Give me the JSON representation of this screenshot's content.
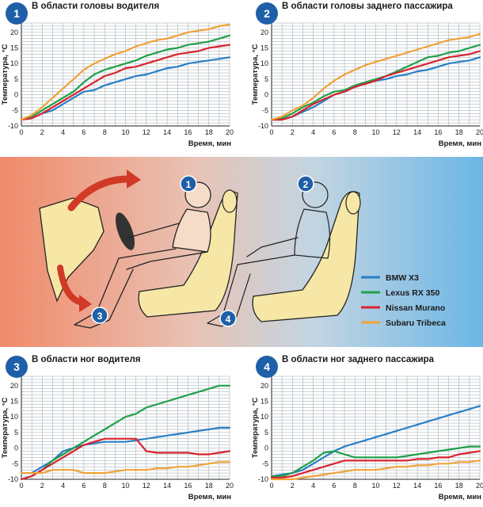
{
  "colors": {
    "bmw": "#2a7fc6",
    "lexus": "#1fa04a",
    "nissan": "#d8242e",
    "subaru": "#f0a236",
    "badge": "#1f5fa8",
    "grid": "#9aa5ad"
  },
  "legend": {
    "items": [
      {
        "label": "BMW X3",
        "color": "#2a7fc6"
      },
      {
        "label": "Lexus RX 350",
        "color": "#1fa04a"
      },
      {
        "label": "Nissan Murano",
        "color": "#d8242e"
      },
      {
        "label": "Subaru Tribeca",
        "color": "#f0a236"
      }
    ]
  },
  "illustration": {
    "markers": [
      "1",
      "2",
      "3",
      "4"
    ]
  },
  "chart_data": [
    {
      "type": "line",
      "number": "1",
      "title": "В области головы водителя",
      "xlabel": "Время, мин",
      "ylabel": "Температура, °С",
      "x": [
        0,
        1,
        2,
        3,
        4,
        5,
        6,
        7,
        8,
        9,
        10,
        11,
        12,
        13,
        14,
        15,
        16,
        17,
        18,
        19,
        20
      ],
      "xticks": [
        0,
        2,
        4,
        6,
        8,
        10,
        12,
        14,
        16,
        18,
        20
      ],
      "yticks": [
        -10,
        -5,
        0,
        5,
        10,
        15,
        20
      ],
      "ylim": [
        -10,
        23
      ],
      "grid": true,
      "series": [
        {
          "name": "BMW X3",
          "values": [
            -8,
            -7.5,
            -6,
            -5,
            -3,
            -1,
            1,
            1.5,
            3,
            4,
            5,
            6,
            6.5,
            7.5,
            8.5,
            9,
            10,
            10.5,
            11,
            11.5,
            12
          ]
        },
        {
          "name": "Lexus RX 350",
          "values": [
            -8,
            -7,
            -5,
            -3,
            -1,
            1,
            4,
            6.5,
            8,
            9,
            10,
            11,
            12.5,
            13.5,
            14.5,
            15,
            16,
            16.5,
            17,
            18,
            19
          ]
        },
        {
          "name": "Nissan Murano",
          "values": [
            -8,
            -7.5,
            -6,
            -4,
            -2,
            0,
            2,
            4,
            6,
            7,
            8.5,
            9,
            10,
            11,
            12,
            13,
            13.5,
            14,
            15,
            15.5,
            16
          ]
        },
        {
          "name": "Subaru Tribeca",
          "values": [
            -8,
            -6.5,
            -4,
            -1,
            2,
            5,
            8,
            10,
            11.5,
            13,
            14,
            15.5,
            16.5,
            17.5,
            18,
            19,
            20,
            20.5,
            21,
            22,
            22.5
          ]
        }
      ]
    },
    {
      "type": "line",
      "number": "2",
      "title": "В области головы заднего пассажира",
      "xlabel": "Время, мин",
      "ylabel": "Температура, °С",
      "x": [
        0,
        1,
        2,
        3,
        4,
        5,
        6,
        7,
        8,
        9,
        10,
        11,
        12,
        13,
        14,
        15,
        16,
        17,
        18,
        19,
        20
      ],
      "xticks": [
        0,
        2,
        4,
        6,
        8,
        10,
        12,
        14,
        16,
        18,
        20
      ],
      "yticks": [
        -10,
        -5,
        0,
        5,
        10,
        15,
        20
      ],
      "ylim": [
        -10,
        23
      ],
      "grid": true,
      "series": [
        {
          "name": "BMW X3",
          "values": [
            -8,
            -8,
            -7,
            -5.5,
            -4,
            -2,
            0,
            1,
            2.5,
            3.5,
            4.5,
            5,
            6,
            6.5,
            7.5,
            8,
            9,
            10,
            10.5,
            11,
            12
          ]
        },
        {
          "name": "Lexus RX 350",
          "values": [
            -8,
            -7.5,
            -6,
            -4,
            -2.5,
            -0.5,
            1,
            1.5,
            3,
            4,
            5,
            6,
            7.5,
            9,
            10.5,
            12,
            12.5,
            13.5,
            14,
            15,
            16
          ]
        },
        {
          "name": "Nissan Murano",
          "values": [
            -8,
            -8,
            -7,
            -5,
            -3,
            -1.5,
            0,
            1,
            2.5,
            3.5,
            4.5,
            6,
            7,
            8,
            9,
            10,
            11,
            12,
            12.5,
            13,
            14
          ]
        },
        {
          "name": "Subaru Tribeca",
          "values": [
            -8,
            -7,
            -5,
            -3.5,
            -1,
            2,
            4.5,
            6.5,
            8,
            9.5,
            10.5,
            11.5,
            12.5,
            13.5,
            14.5,
            15.5,
            16.5,
            17.5,
            18,
            18.5,
            19.5
          ]
        }
      ]
    },
    {
      "type": "line",
      "number": "3",
      "title": "В области ног водителя",
      "xlabel": "Время, мин",
      "ylabel": "Температура, °С",
      "x": [
        0,
        1,
        2,
        3,
        4,
        5,
        6,
        7,
        8,
        9,
        10,
        11,
        12,
        13,
        14,
        15,
        16,
        17,
        18,
        19,
        20
      ],
      "xticks": [
        0,
        2,
        4,
        6,
        8,
        10,
        12,
        14,
        16,
        18,
        20
      ],
      "yticks": [
        -10,
        -5,
        0,
        5,
        10,
        15,
        20
      ],
      "ylim": [
        -10,
        23
      ],
      "grid": true,
      "series": [
        {
          "name": "BMW X3",
          "values": [
            -8,
            -8,
            -6,
            -4,
            -1,
            0,
            1,
            1.5,
            2,
            2,
            2,
            2.5,
            3,
            3.5,
            4,
            4.5,
            5,
            5.5,
            6,
            6.5,
            6.5
          ]
        },
        {
          "name": "Lexus RX 350",
          "values": [
            -10,
            -9,
            -7,
            -4,
            -2,
            0,
            2,
            4,
            6,
            8,
            10,
            11,
            13,
            14,
            15,
            16,
            17,
            18,
            19,
            20,
            20
          ]
        },
        {
          "name": "Nissan Murano",
          "values": [
            -10,
            -9,
            -7,
            -5,
            -3,
            -1,
            1,
            2,
            3,
            3,
            3,
            3,
            -1,
            -1.5,
            -1.5,
            -1.5,
            -1.5,
            -2,
            -2,
            -1.5,
            -1
          ]
        },
        {
          "name": "Subaru Tribeca",
          "values": [
            -8,
            -8,
            -8,
            -7,
            -7,
            -7,
            -8,
            -8,
            -8,
            -7.5,
            -7,
            -7,
            -7,
            -6.5,
            -6.5,
            -6,
            -6,
            -5.5,
            -5,
            -4.5,
            -4.5
          ]
        }
      ]
    },
    {
      "type": "line",
      "number": "4",
      "title": "В области ног заднего пассажира",
      "xlabel": "Время, мин",
      "ylabel": "Температура, °С",
      "x": [
        0,
        1,
        2,
        3,
        4,
        5,
        6,
        7,
        8,
        9,
        10,
        11,
        12,
        13,
        14,
        15,
        16,
        17,
        18,
        19,
        20
      ],
      "xticks": [
        0,
        2,
        4,
        6,
        8,
        10,
        12,
        14,
        16,
        18,
        20
      ],
      "yticks": [
        -10,
        -5,
        0,
        5,
        10,
        15,
        20
      ],
      "ylim": [
        -10,
        23
      ],
      "grid": true,
      "series": [
        {
          "name": "BMW X3",
          "values": [
            -9,
            -8.5,
            -8,
            -7,
            -5,
            -3,
            -1,
            0.5,
            1.5,
            2.5,
            3.5,
            4.5,
            5.5,
            6.5,
            7.5,
            8.5,
            9.5,
            10.5,
            11.5,
            12.5,
            13.5
          ]
        },
        {
          "name": "Lexus RX 350",
          "values": [
            -9,
            -9,
            -8,
            -6,
            -4,
            -1.5,
            -1,
            -2,
            -3,
            -3,
            -3,
            -3,
            -3,
            -2.5,
            -2,
            -1.5,
            -1,
            -0.5,
            0,
            0.5,
            0.5
          ]
        },
        {
          "name": "Nissan Murano",
          "values": [
            -9.5,
            -9.5,
            -9,
            -8,
            -7,
            -6,
            -5,
            -4,
            -4,
            -4,
            -4,
            -4,
            -4,
            -4,
            -3.5,
            -3.5,
            -3,
            -3,
            -2,
            -1.5,
            -1
          ]
        },
        {
          "name": "Subaru Tribeca",
          "values": [
            -10,
            -10,
            -10,
            -9.5,
            -9,
            -8.5,
            -8,
            -7.5,
            -7,
            -7,
            -7,
            -6.5,
            -6,
            -6,
            -5.5,
            -5.5,
            -5,
            -5,
            -4.5,
            -4.5,
            -4
          ]
        }
      ]
    }
  ]
}
